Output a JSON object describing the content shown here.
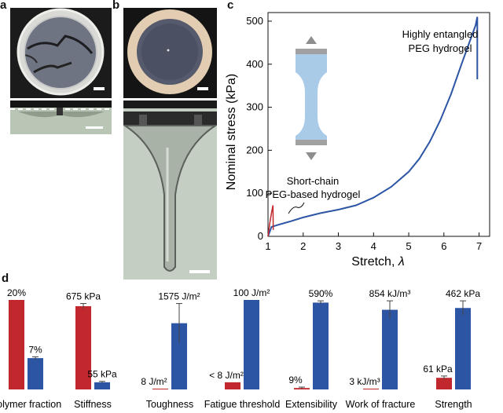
{
  "panel_labels": {
    "a": "a",
    "b": "b",
    "c": "c",
    "d": "d"
  },
  "chart_data": [
    {
      "type": "line",
      "xlabel": "Stretch, ",
      "xlabel_symbol": "λ",
      "ylabel": "Nominal stress (kPa)",
      "xlim": [
        1,
        7.3
      ],
      "ylim": [
        0,
        520
      ],
      "xticks": [
        1,
        2,
        3,
        4,
        5,
        6,
        7
      ],
      "yticks": [
        0,
        100,
        200,
        300,
        400,
        500
      ],
      "grid": false,
      "annotations": {
        "entangled_line1": "Highly entangled",
        "entangled_line2": "PEG hydrogel",
        "short_line1": "Short-chain",
        "short_line2": "PEG-based hydrogel"
      },
      "series": [
        {
          "color": "#2c55a4",
          "x": [
            1.0,
            1.1,
            1.3,
            1.6,
            2.0,
            2.5,
            3.0,
            3.5,
            4.0,
            4.5,
            5.0,
            5.3,
            5.6,
            5.9,
            6.2,
            6.5,
            6.7,
            6.9,
            6.95,
            6.95
          ],
          "y": [
            0,
            22,
            27,
            34,
            44,
            54,
            62,
            72,
            90,
            115,
            150,
            180,
            220,
            270,
            330,
            400,
            445,
            490,
            510,
            365
          ]
        },
        {
          "color": "#c0282d",
          "x": [
            1.0,
            1.05,
            1.1,
            1.14,
            1.15
          ],
          "y": [
            0,
            30,
            55,
            72,
            15
          ]
        }
      ]
    },
    {
      "type": "bar",
      "categories": [
        "Polymer fraction",
        "Stiffness",
        "Toughness",
        "Fatigue threshold",
        "Extensibility",
        "Work of fracture",
        "Strength"
      ],
      "series": [
        {
          "color": "#c0282d",
          "values": [
            20,
            675,
            8,
            8,
            9,
            3,
            61
          ],
          "labels": [
            "20%",
            "675 kPa",
            "8 J/m²",
            "< 8 J/m²",
            "9%",
            "3 kJ/m³",
            "61 kPa"
          ]
        },
        {
          "color": "#2c55a4",
          "values": [
            7,
            55,
            1575,
            100,
            590,
            854,
            462
          ],
          "labels": [
            "7%",
            "55 kPa",
            "1575 J/m²",
            "100 J/m²",
            "590%",
            "854 kJ/m³",
            "462 kPa"
          ]
        }
      ],
      "normalized_heights": {
        "red": [
          1.0,
          0.93,
          0.005,
          0.08,
          0.016,
          0.004,
          0.13
        ],
        "blue": [
          0.35,
          0.08,
          0.74,
          1.0,
          0.97,
          0.89,
          0.91
        ]
      },
      "error": {
        "red": [
          0,
          0.03,
          0,
          0,
          0.01,
          0,
          0.02
        ],
        "blue": [
          0.015,
          0.01,
          0.22,
          0,
          0.02,
          0.1,
          0.08
        ]
      }
    }
  ]
}
